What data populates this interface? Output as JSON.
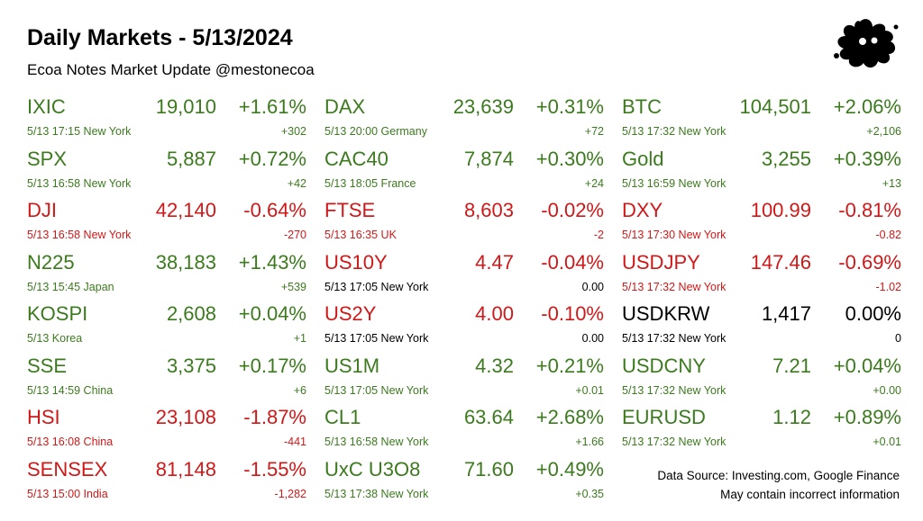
{
  "header": {
    "title": "Daily Markets - 5/13/2024",
    "subtitle": "Ecoa Notes Market Update @mestonecoa"
  },
  "columns": [
    [
      {
        "symbol": "IXIC",
        "value": "19,010",
        "pct": "+1.61%",
        "meta": "5/13 17:15 New York",
        "change": "+302",
        "trend": "up"
      },
      {
        "symbol": "SPX",
        "value": "5,887",
        "pct": "+0.72%",
        "meta": "5/13 16:58 New York",
        "change": "+42",
        "trend": "up"
      },
      {
        "symbol": "DJI",
        "value": "42,140",
        "pct": "-0.64%",
        "meta": "5/13 16:58 New York",
        "change": "-270",
        "trend": "down"
      },
      {
        "symbol": "N225",
        "value": "38,183",
        "pct": "+1.43%",
        "meta": "5/13 15:45 Japan",
        "change": "+539",
        "trend": "up"
      },
      {
        "symbol": "KOSPI",
        "value": "2,608",
        "pct": "+0.04%",
        "meta": "5/13  Korea",
        "change": "+1",
        "trend": "up"
      },
      {
        "symbol": "SSE",
        "value": "3,375",
        "pct": "+0.17%",
        "meta": "5/13 14:59 China",
        "change": "+6",
        "trend": "up"
      },
      {
        "symbol": "HSI",
        "value": "23,108",
        "pct": "-1.87%",
        "meta": "5/13 16:08 China",
        "change": "-441",
        "trend": "down"
      },
      {
        "symbol": "SENSEX",
        "value": "81,148",
        "pct": "-1.55%",
        "meta": "5/13 15:00 India",
        "change": "-1,282",
        "trend": "down"
      }
    ],
    [
      {
        "symbol": "DAX",
        "value": "23,639",
        "pct": "+0.31%",
        "meta": "5/13 20:00 Germany",
        "change": "+72",
        "trend": "up"
      },
      {
        "symbol": "CAC40",
        "value": "7,874",
        "pct": "+0.30%",
        "meta": "5/13 18:05 France",
        "change": "+24",
        "trend": "up"
      },
      {
        "symbol": "FTSE",
        "value": "8,603",
        "pct": "-0.02%",
        "meta": "5/13 16:35 UK",
        "change": "-2",
        "trend": "down"
      },
      {
        "symbol": "US10Y",
        "value": "4.47",
        "pct": "-0.04%",
        "meta": "5/13 17:05 New York",
        "change": "0.00",
        "trend": "down",
        "meta_trend": "flat"
      },
      {
        "symbol": "US2Y",
        "value": "4.00",
        "pct": "-0.10%",
        "meta": "5/13 17:05 New York",
        "change": "0.00",
        "trend": "down",
        "meta_trend": "flat"
      },
      {
        "symbol": "US1M",
        "value": "4.32",
        "pct": "+0.21%",
        "meta": "5/13 17:05 New York",
        "change": "+0.01",
        "trend": "up"
      },
      {
        "symbol": "CL1",
        "value": "63.64",
        "pct": "+2.68%",
        "meta": "5/13 16:58 New York",
        "change": "+1.66",
        "trend": "up"
      },
      {
        "symbol": "UxC U3O8",
        "value": "71.60",
        "pct": "+0.49%",
        "meta": "5/13 17:38 New York",
        "change": "+0.35",
        "trend": "up"
      }
    ],
    [
      {
        "symbol": "BTC",
        "value": "104,501",
        "pct": "+2.06%",
        "meta": "5/13 17:32 New York",
        "change": "+2,106",
        "trend": "up"
      },
      {
        "symbol": "Gold",
        "value": "3,255",
        "pct": "+0.39%",
        "meta": "5/13 16:59 New York",
        "change": "+13",
        "trend": "up"
      },
      {
        "symbol": "DXY",
        "value": "100.99",
        "pct": "-0.81%",
        "meta": "5/13 17:30 New York",
        "change": "-0.82",
        "trend": "down"
      },
      {
        "symbol": "USDJPY",
        "value": "147.46",
        "pct": "-0.69%",
        "meta": "5/13 17:32 New York",
        "change": "-1.02",
        "trend": "down"
      },
      {
        "symbol": "USDKRW",
        "value": "1,417",
        "pct": "0.00%",
        "meta": "5/13 17:32 New York",
        "change": "0",
        "trend": "flat"
      },
      {
        "symbol": "USDCNY",
        "value": "7.21",
        "pct": "+0.04%",
        "meta": "5/13 17:32 New York",
        "change": "+0.00",
        "trend": "up"
      },
      {
        "symbol": "EURUSD",
        "value": "1.12",
        "pct": "+0.89%",
        "meta": "5/13 17:32 New York",
        "change": "+0.01",
        "trend": "up"
      }
    ]
  ],
  "footer": {
    "source": "Data Source: Investing.com, Google Finance",
    "disclaimer": "May contain incorrect information"
  },
  "colors": {
    "up": "#3c7a1e",
    "down": "#d01818",
    "flat": "#000000"
  },
  "logo_icon": "ink-splat-logo-icon"
}
